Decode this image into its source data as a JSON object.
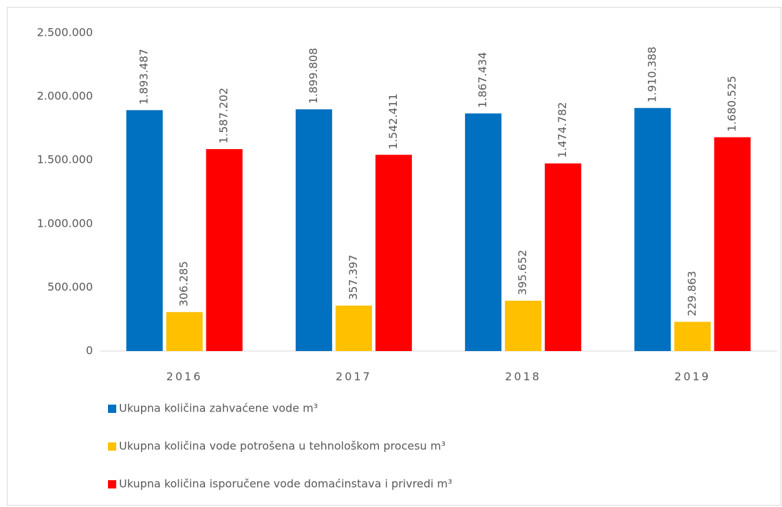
{
  "chart_data": {
    "type": "bar",
    "categories": [
      "2016",
      "2017",
      "2018",
      "2019"
    ],
    "series": [
      {
        "name": "Ukupna količina zahvaćene vode m³",
        "color": "#0070c0",
        "values": [
          1893487,
          1899808,
          1867434,
          1910388
        ],
        "value_labels": [
          "1.893.487",
          "1.899.808",
          "1.867.434",
          "1.910.388"
        ]
      },
      {
        "name": "Ukupna količina vode potrošena u tehnološkom procesu m³",
        "color": "#ffc000",
        "values": [
          306285,
          357397,
          395652,
          229863
        ],
        "value_labels": [
          "306.285",
          "357.397",
          "395.652",
          "229.863"
        ]
      },
      {
        "name": "Ukupna količina isporučene vode domaćinstava i privredi m³",
        "color": "#ff0000",
        "values": [
          1587202,
          1542411,
          1474782,
          1680525
        ],
        "value_labels": [
          "1.587.202",
          "1.542.411",
          "1.474.782",
          "1.680.525"
        ]
      }
    ],
    "ylim": [
      0,
      2500000
    ],
    "yticks": [
      0,
      {
        "value": 500000,
        "label": "500.000"
      },
      {
        "value": 1000000,
        "label": "1.000.000"
      },
      {
        "value": 1500000,
        "label": "1.500.000"
      },
      {
        "value": 2000000,
        "label": "2.000.000"
      },
      {
        "value": 2500000,
        "label": "2.500.000"
      }
    ],
    "grid": false,
    "legend": "bottom"
  }
}
